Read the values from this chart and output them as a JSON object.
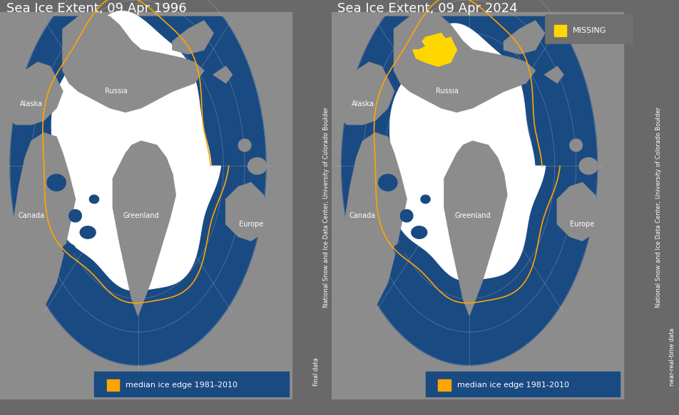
{
  "title_left": "Sea Ice Extent, 09 Apr 1996",
  "title_right": "Sea Ice Extent, 09 Apr 2024",
  "legend_label": "median ice edge 1981-2010",
  "missing_label": "MISSING",
  "sidebar_text": "National Snow and Ice Data Center, University of Colorado Boulder",
  "sidebar_text_left1": "final data",
  "sidebar_text_right1": "near-real-time data",
  "bg_color": "#696969",
  "map_bg_color": "#696969",
  "ocean_color": "#1a4a82",
  "ice_color": "#ffffff",
  "land_color": "#8c8c8c",
  "ice_edge_color": "#ffa500",
  "missing_color": "#ffd700",
  "grid_color": "#d0d0d0",
  "title_color": "#ffffff",
  "legend_bg": "#1a4a82",
  "missing_bg": "#707070",
  "title_fontsize": 13,
  "label_fontsize": 7,
  "legend_fontsize": 8,
  "sidebar_fontsize": 6
}
